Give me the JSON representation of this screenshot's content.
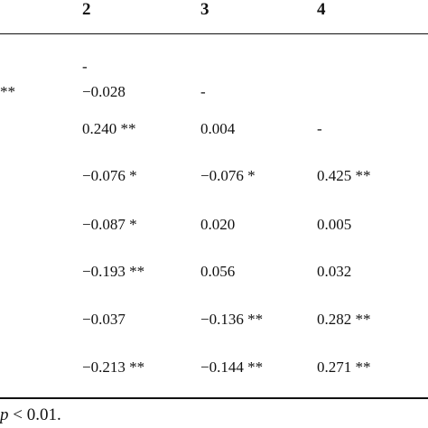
{
  "table": {
    "headers": [
      "2",
      "3",
      "4"
    ],
    "rows": [
      {
        "left": "",
        "c2": "-",
        "c3": "",
        "c4": ""
      },
      {
        "left": "**",
        "c2": "−0.028",
        "c3": "-",
        "c4": ""
      },
      {
        "left": "",
        "c2": "0.240 **",
        "c3": "0.004",
        "c4": "-"
      },
      {
        "left": "",
        "c2": "−0.076 *",
        "c3": "−0.076 *",
        "c4": "0.425 **"
      },
      {
        "left": "",
        "c2": "−0.087 *",
        "c3": "0.020",
        "c4": "0.005"
      },
      {
        "left": "",
        "c2": "−0.193 **",
        "c3": "0.056",
        "c4": "0.032"
      },
      {
        "left": "",
        "c2": "−0.037",
        "c3": "−0.136 **",
        "c4": "0.282 **"
      },
      {
        "left": "",
        "c2": "−0.213 **",
        "c3": "−0.144 **",
        "c4": "0.271 **"
      }
    ]
  },
  "footnote": {
    "p": "p",
    "rest": " < 0.01."
  }
}
